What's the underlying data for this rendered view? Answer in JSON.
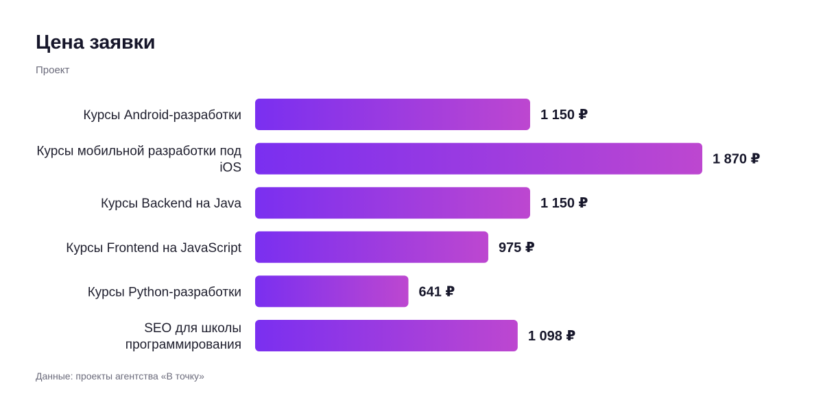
{
  "header": {
    "title": "Цена заявки",
    "subtitle": "Проект"
  },
  "footer": {
    "source": "Данные: проекты агентства «В точку»"
  },
  "colors": {
    "bar_start": "#7a2ff0",
    "bar_end": "#bd47d0"
  },
  "chart_data": {
    "type": "bar",
    "orientation": "horizontal",
    "title": "Цена заявки",
    "subtitle": "Проект",
    "unit": "₽",
    "categories": [
      [
        "Курсы Android-разработки"
      ],
      [
        "Курсы мобильной разработки под",
        "iOS"
      ],
      [
        "Курсы Backend на Java"
      ],
      [
        "Курсы Frontend на JavaScript"
      ],
      [
        "Курсы Python-разработки"
      ],
      [
        "SEO для школы",
        "программирования"
      ]
    ],
    "values": [
      1150,
      1870,
      1150,
      975,
      641,
      1098
    ],
    "value_labels": [
      "1 150",
      "1 870",
      "1 150",
      "975",
      "641",
      "1 098"
    ],
    "xlim": [
      0,
      1870
    ],
    "grid": false,
    "legend": "none"
  }
}
